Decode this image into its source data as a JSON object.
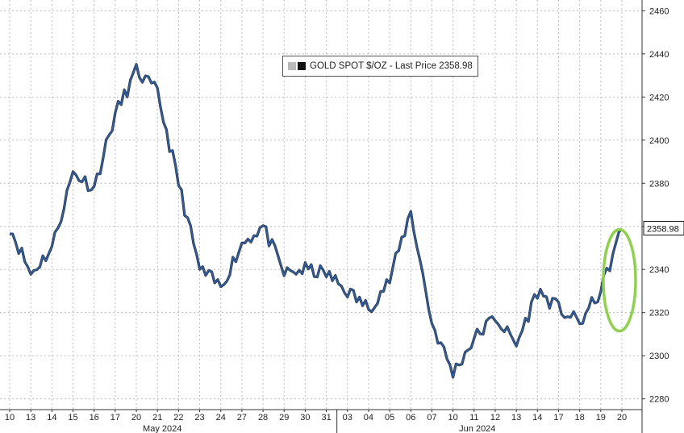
{
  "chart_data": {
    "type": "line",
    "series": [
      {
        "name": "GOLD SPOT $/OZ",
        "x": [
          "May 10",
          "May 13",
          "May 14",
          "May 15",
          "May 16",
          "May 17",
          "May 20",
          "May 21",
          "May 22",
          "May 23",
          "May 24",
          "May 27",
          "May 28",
          "May 29",
          "May 30",
          "May 31",
          "Jun 03",
          "Jun 04",
          "Jun 05",
          "Jun 06",
          "Jun 07",
          "Jun 10",
          "Jun 11",
          "Jun 12",
          "Jun 13",
          "Jun 14",
          "Jun 17",
          "Jun 18",
          "Jun 19",
          "Jun 20"
        ],
        "values": [
          2360,
          2338,
          2350,
          2385,
          2378,
          2412,
          2432,
          2422,
          2380,
          2340,
          2332,
          2352,
          2360,
          2338,
          2340,
          2338,
          2330,
          2322,
          2335,
          2367,
          2315,
          2292,
          2308,
          2318,
          2305,
          2330,
          2322,
          2315,
          2330,
          2358.98
        ]
      }
    ],
    "legend_label": "GOLD SPOT $/OZ - Last Price 2358.98",
    "last_price": "2358.98",
    "ylim": [
      2275,
      2465
    ],
    "y_ticks": [
      "2460",
      "2440",
      "2420",
      "2400",
      "2380",
      "2360",
      "2340",
      "2320",
      "2300",
      "2280"
    ],
    "x_ticks": [
      "10",
      "13",
      "14",
      "15",
      "16",
      "17",
      "20",
      "21",
      "22",
      "23",
      "24",
      "27",
      "28",
      "29",
      "30",
      "31",
      "03",
      "04",
      "05",
      "06",
      "07",
      "10",
      "11",
      "12",
      "13",
      "14",
      "17",
      "18",
      "19",
      "20"
    ],
    "month_labels": [
      "May 2024",
      "Jun 2024"
    ],
    "grid": true,
    "y_axis_side": "right",
    "legend_position": "top-center",
    "colors": {
      "line": "#2b5fa8",
      "line_shadow": "#111111",
      "highlight": "#90d050",
      "grid": "#bdbdbd"
    },
    "annotation": "green ellipse highlighting the latest rally"
  }
}
